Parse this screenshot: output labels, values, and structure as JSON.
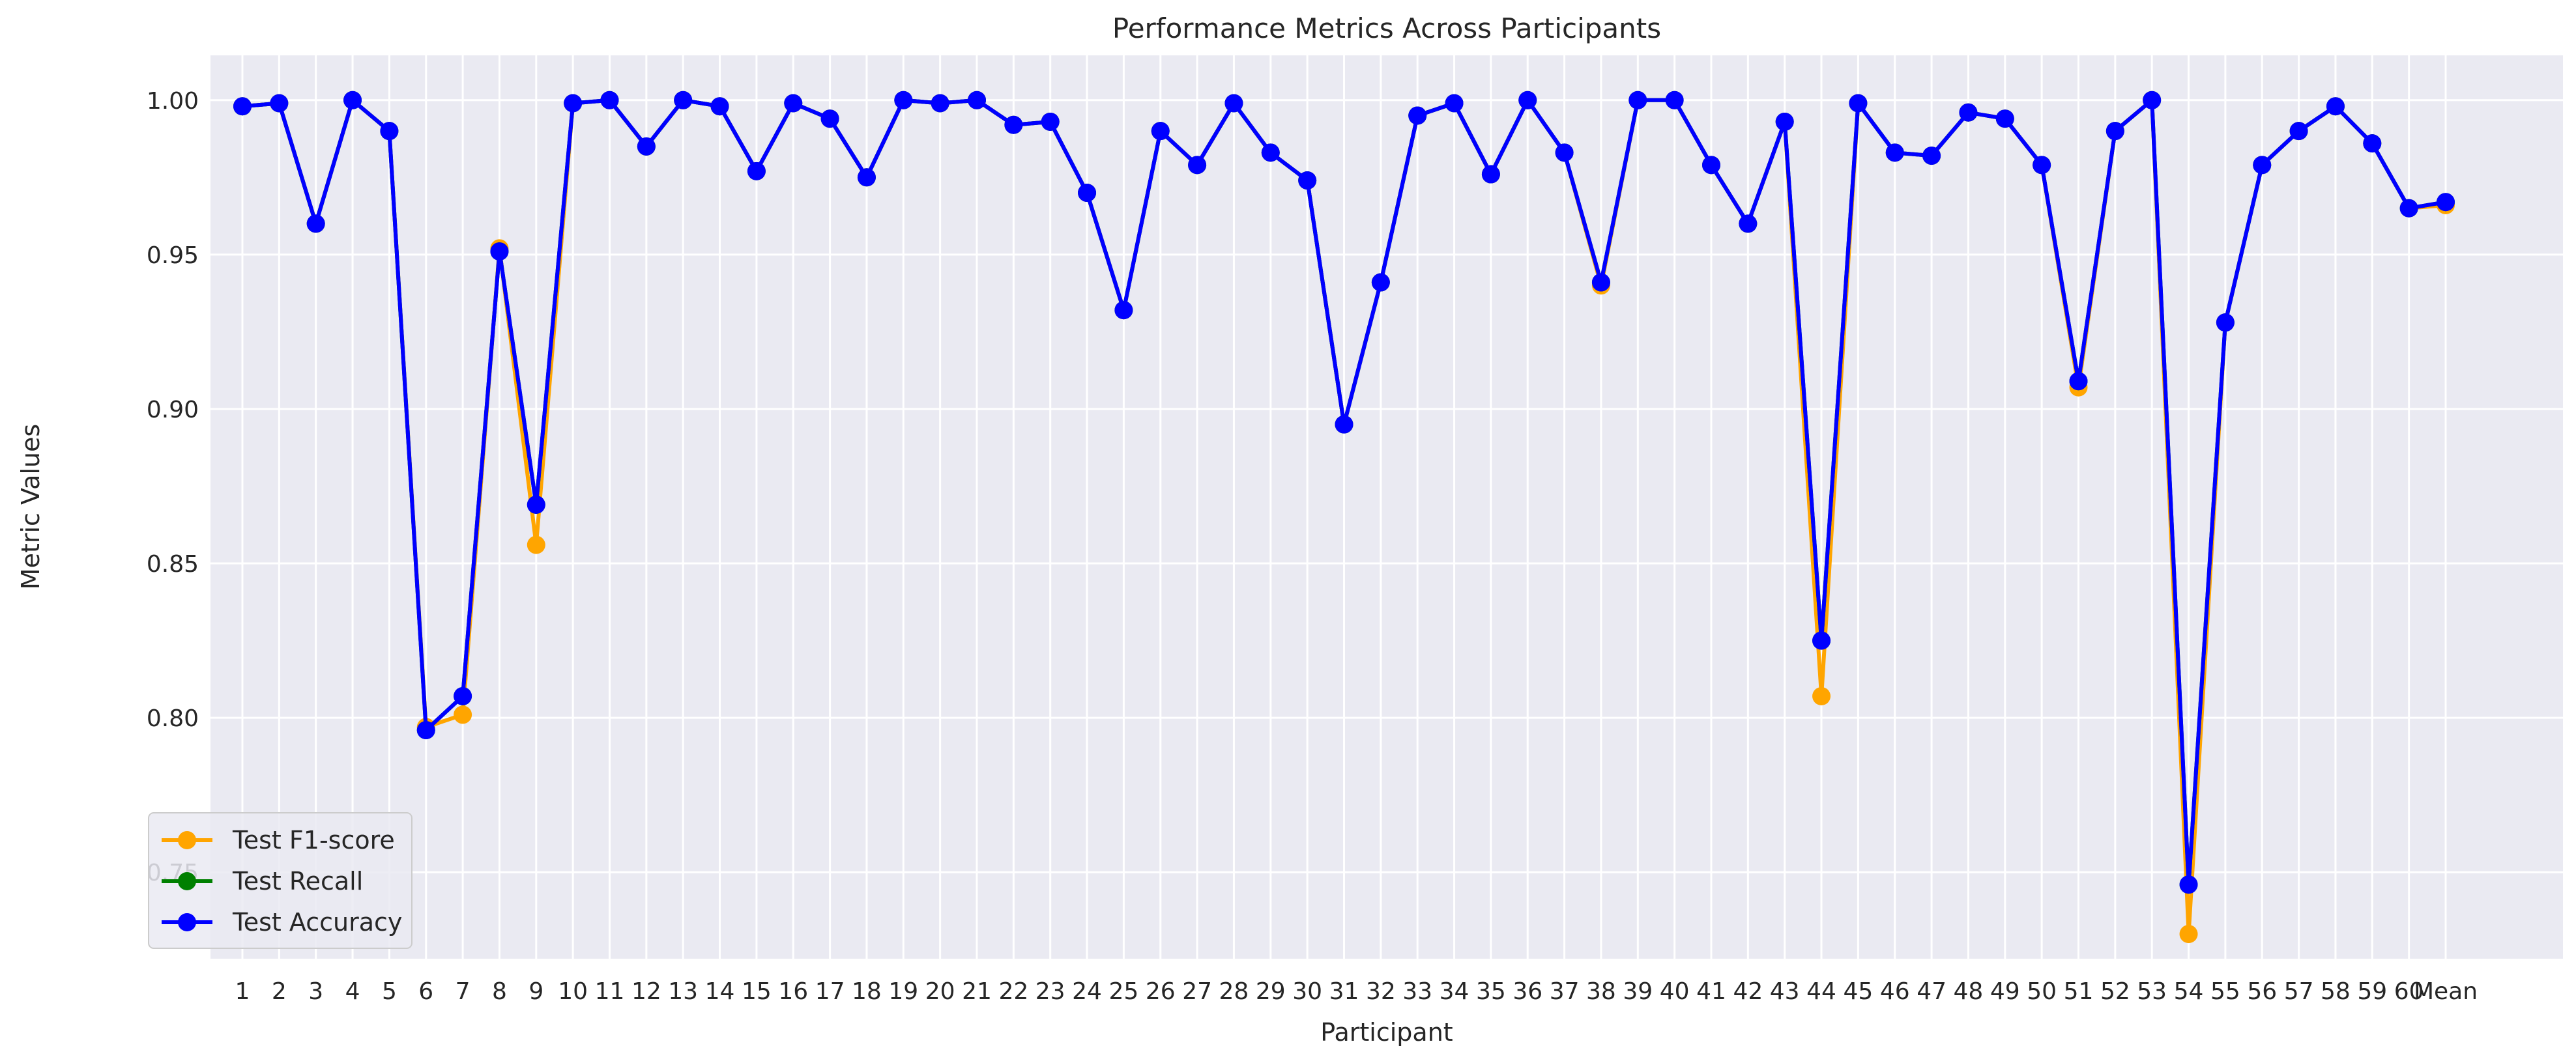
{
  "chart_data": {
    "type": "line",
    "title": "Performance Metrics Across Participants",
    "xlabel": "Participant",
    "ylabel": "Metric Values",
    "ylim": [
      0.722,
      1.0145
    ],
    "yticks": [
      "0.75",
      "0.80",
      "0.85",
      "0.90",
      "0.95",
      "1.00"
    ],
    "grid": true,
    "legend_position": "lower-left",
    "categories": [
      "1",
      "2",
      "3",
      "4",
      "5",
      "6",
      "7",
      "8",
      "9",
      "10",
      "11",
      "12",
      "13",
      "14",
      "15",
      "16",
      "17",
      "18",
      "19",
      "20",
      "21",
      "22",
      "23",
      "24",
      "25",
      "26",
      "27",
      "28",
      "29",
      "30",
      "31",
      "32",
      "33",
      "34",
      "35",
      "36",
      "37",
      "38",
      "39",
      "40",
      "41",
      "42",
      "43",
      "44",
      "45",
      "46",
      "47",
      "48",
      "49",
      "50",
      "51",
      "52",
      "53",
      "54",
      "55",
      "56",
      "57",
      "58",
      "59",
      "60",
      "Mean"
    ],
    "series": [
      {
        "name": "Test F1-score",
        "color": "#FFA500",
        "values": [
          0.998,
          0.999,
          0.96,
          1.0,
          0.99,
          0.797,
          0.801,
          0.952,
          0.856,
          0.999,
          1.0,
          0.985,
          1.0,
          0.998,
          0.977,
          0.999,
          0.994,
          0.975,
          1.0,
          0.999,
          1.0,
          0.992,
          0.993,
          0.97,
          0.932,
          0.99,
          0.979,
          0.999,
          0.983,
          0.974,
          0.895,
          0.941,
          0.995,
          0.999,
          0.976,
          1.0,
          0.983,
          0.94,
          1.0,
          1.0,
          0.979,
          0.96,
          0.993,
          0.807,
          0.999,
          0.983,
          0.982,
          0.996,
          0.994,
          0.979,
          0.907,
          0.99,
          1.0,
          0.73,
          0.928,
          0.979,
          0.99,
          0.998,
          0.986,
          0.965,
          0.966
        ]
      },
      {
        "name": "Test Recall",
        "color": "#008000",
        "values": [
          0.998,
          0.999,
          0.96,
          1.0,
          0.99,
          0.796,
          0.807,
          0.951,
          0.869,
          0.999,
          1.0,
          0.985,
          1.0,
          0.998,
          0.977,
          0.999,
          0.994,
          0.975,
          1.0,
          0.999,
          1.0,
          0.992,
          0.993,
          0.97,
          0.932,
          0.99,
          0.979,
          0.999,
          0.983,
          0.974,
          0.895,
          0.941,
          0.995,
          0.999,
          0.976,
          1.0,
          0.983,
          0.941,
          1.0,
          1.0,
          0.979,
          0.96,
          0.993,
          0.825,
          0.999,
          0.983,
          0.982,
          0.996,
          0.994,
          0.979,
          0.909,
          0.99,
          1.0,
          0.746,
          0.928,
          0.979,
          0.99,
          0.998,
          0.986,
          0.965,
          0.967
        ]
      },
      {
        "name": "Test Accuracy",
        "color": "#0000FF",
        "values": [
          0.998,
          0.999,
          0.96,
          1.0,
          0.99,
          0.796,
          0.807,
          0.951,
          0.869,
          0.999,
          1.0,
          0.985,
          1.0,
          0.998,
          0.977,
          0.999,
          0.994,
          0.975,
          1.0,
          0.999,
          1.0,
          0.992,
          0.993,
          0.97,
          0.932,
          0.99,
          0.979,
          0.999,
          0.983,
          0.974,
          0.895,
          0.941,
          0.995,
          0.999,
          0.976,
          1.0,
          0.983,
          0.941,
          1.0,
          1.0,
          0.979,
          0.96,
          0.993,
          0.825,
          0.999,
          0.983,
          0.982,
          0.996,
          0.994,
          0.979,
          0.909,
          0.99,
          1.0,
          0.746,
          0.928,
          0.979,
          0.99,
          0.998,
          0.986,
          0.965,
          0.967
        ]
      }
    ]
  }
}
